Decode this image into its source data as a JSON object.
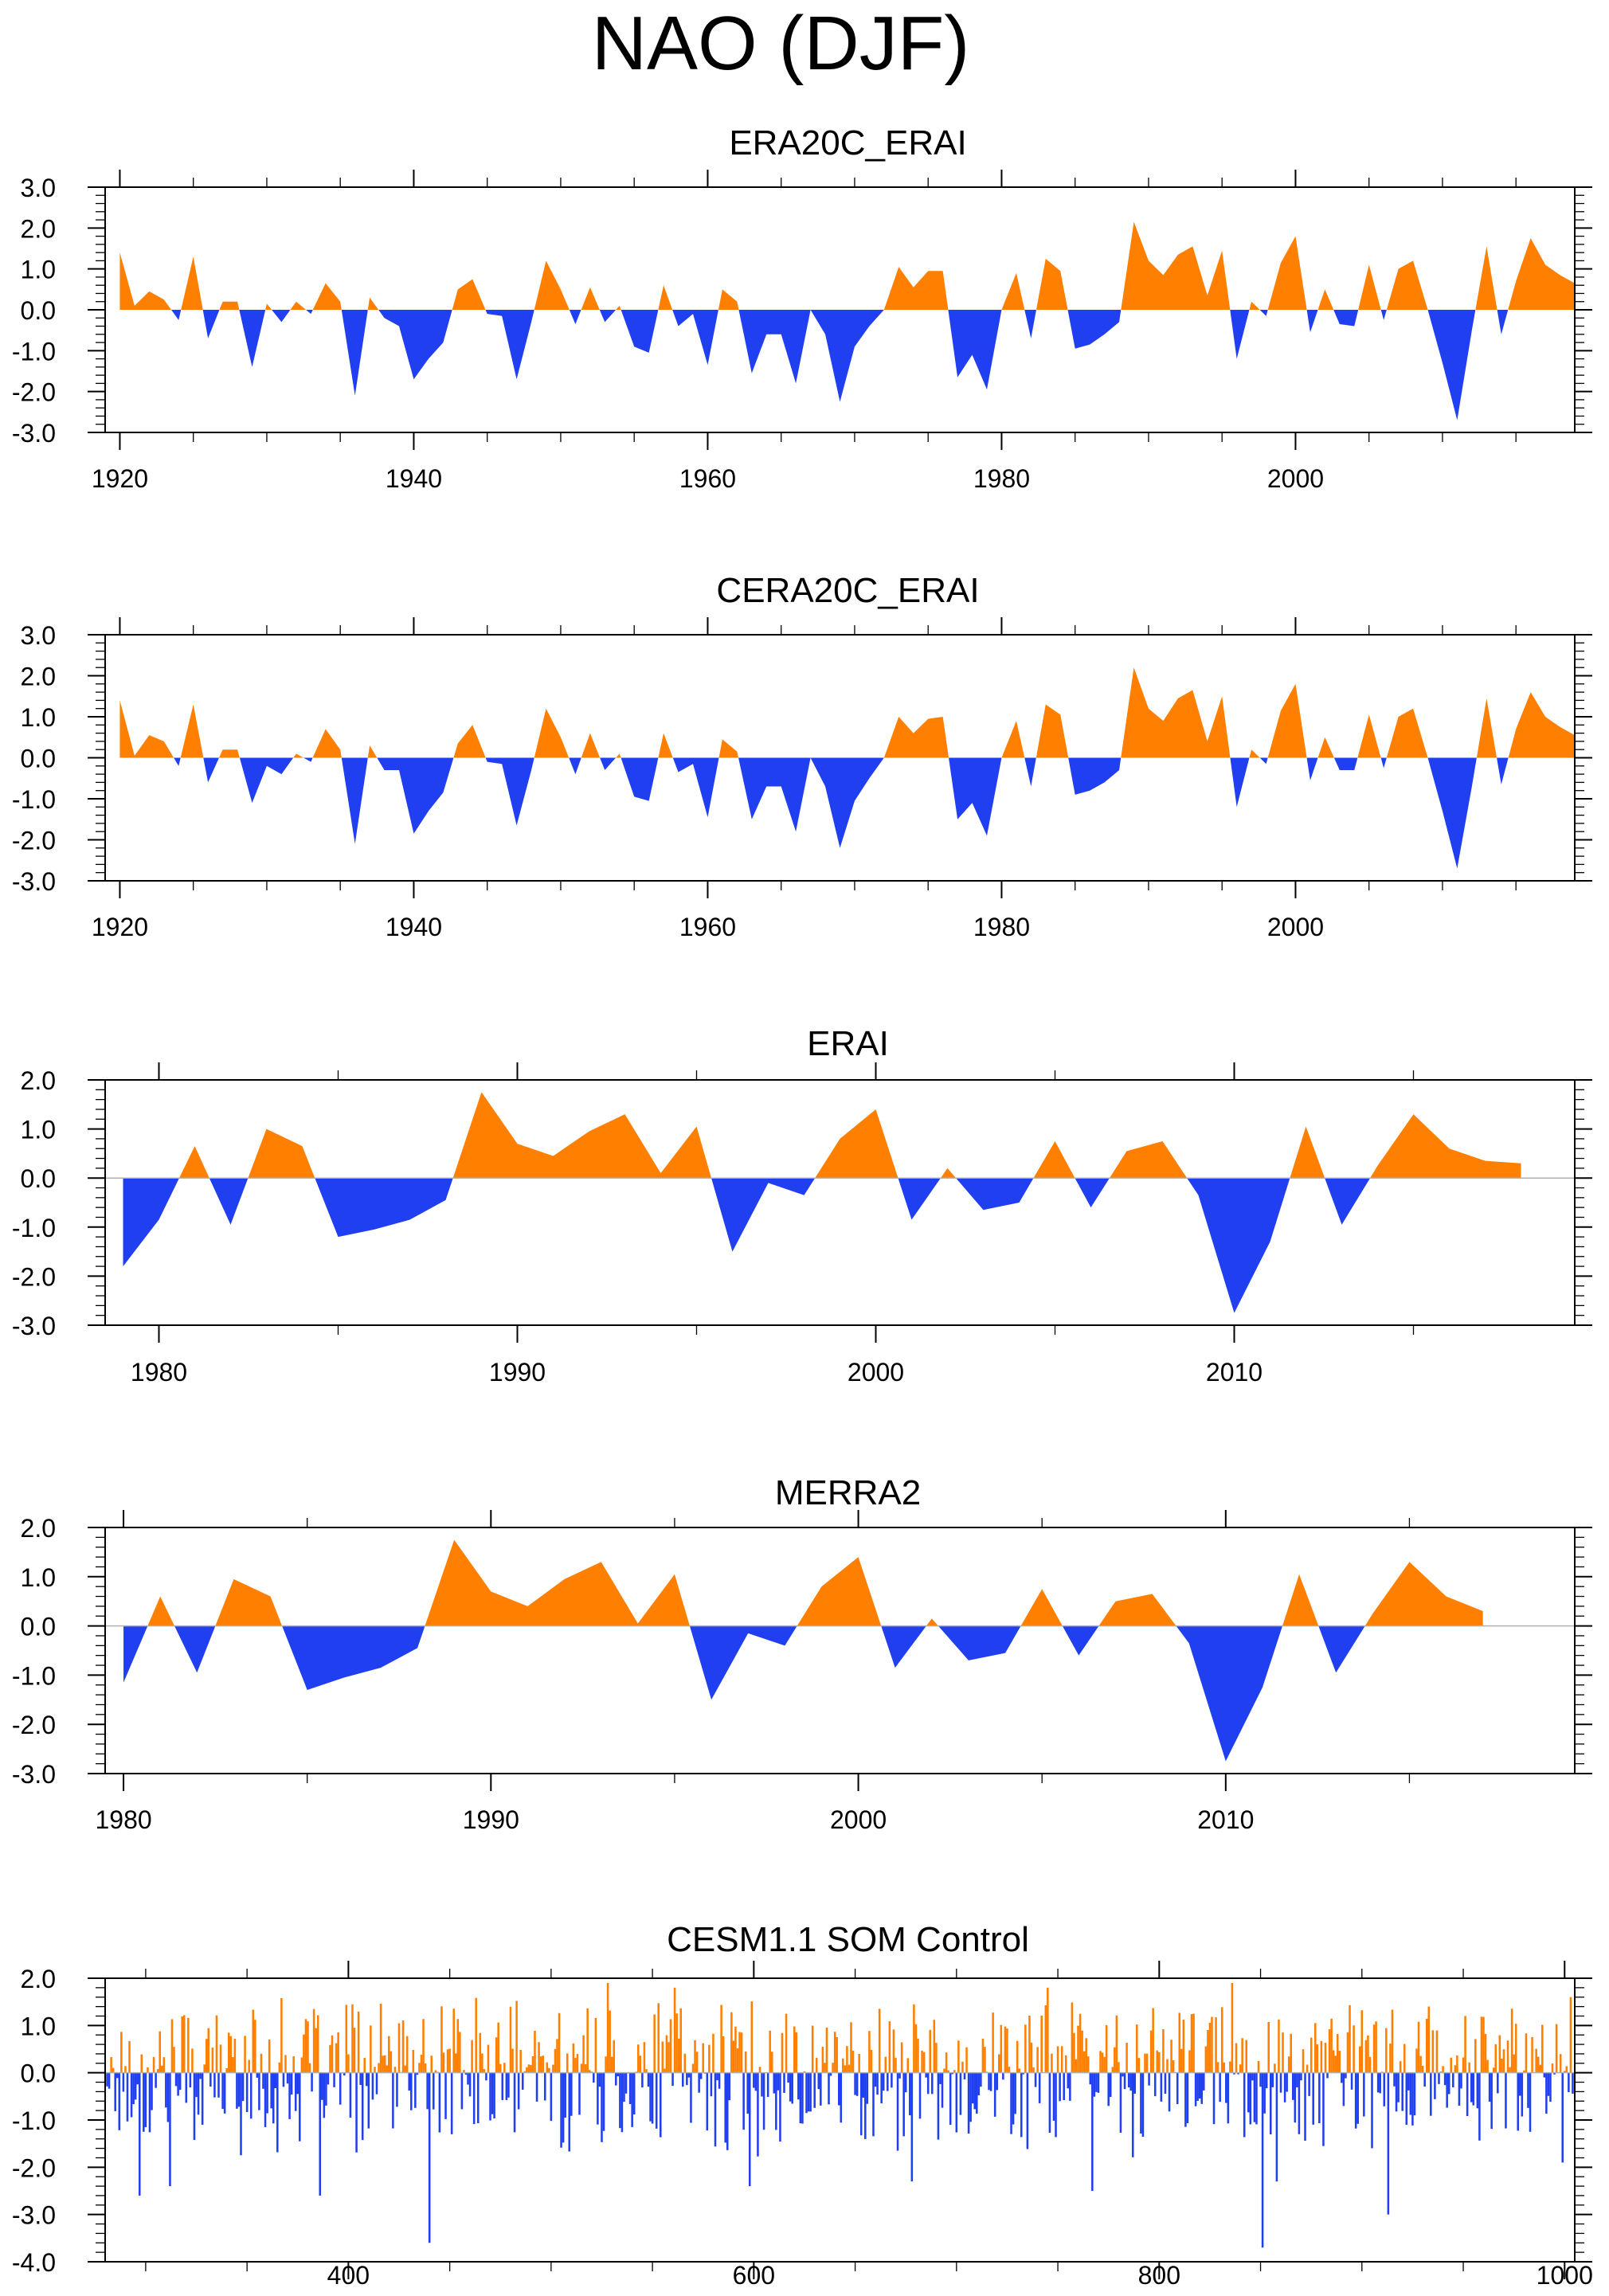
{
  "figure_title": "NAO (DJF)",
  "colors": {
    "positive": "#ff8000",
    "negative": "#1f3ff0",
    "axis": "#000000",
    "zero_line": "#b0b0b0"
  },
  "chart_data": [
    {
      "type": "area",
      "title": "ERA20C_ERAI",
      "xlim": [
        1919,
        2019
      ],
      "ylim": [
        -3.0,
        3.0
      ],
      "xticks": [
        1920,
        1940,
        1960,
        1980,
        2000
      ],
      "xtick_labels": [
        "1920",
        "1940",
        "1960",
        "1980",
        "2000"
      ],
      "yticks": [
        3.0,
        2.0,
        1.0,
        0.0,
        -1.0,
        -2.0,
        -3.0
      ],
      "ytick_labels": [
        "3.0",
        "2.0",
        "1.0",
        "0.0",
        "-1.0",
        "-2.0",
        "-3.0"
      ],
      "x_start": 1920,
      "values": [
        1.4,
        0.1,
        0.45,
        0.25,
        -0.25,
        1.3,
        -0.7,
        0.2,
        0.2,
        -1.4,
        0.15,
        -0.3,
        0.2,
        -0.1,
        0.65,
        0.2,
        -2.1,
        0.3,
        -0.2,
        -0.4,
        -1.7,
        -1.2,
        -0.8,
        0.5,
        0.75,
        -0.1,
        -0.15,
        -1.7,
        -0.3,
        1.2,
        0.5,
        -0.35,
        0.55,
        -0.3,
        0.1,
        -0.9,
        -1.05,
        0.6,
        -0.4,
        -0.1,
        -1.35,
        0.5,
        0.2,
        -1.55,
        -0.6,
        -0.6,
        -1.8,
        0.0,
        -0.6,
        -2.25,
        -0.9,
        -0.4,
        0.0,
        1.05,
        0.55,
        0.95,
        0.95,
        -1.65,
        -1.1,
        -1.95,
        0.0,
        0.9,
        -0.7,
        1.25,
        0.95,
        -0.95,
        -0.85,
        -0.6,
        -0.3,
        2.15,
        1.2,
        0.85,
        1.35,
        1.55,
        0.35,
        1.45,
        -1.2,
        0.2,
        -0.15,
        1.15,
        1.8,
        -0.55,
        0.5,
        -0.35,
        -0.4,
        1.1,
        -0.25,
        1.0,
        1.2,
        0.0,
        -1.3,
        -2.7,
        -0.5,
        1.55,
        -0.6,
        0.7,
        1.75,
        1.1,
        0.85,
        0.65
      ]
    },
    {
      "type": "area",
      "title": "CERA20C_ERAI",
      "xlim": [
        1919,
        2019
      ],
      "ylim": [
        -3.0,
        3.0
      ],
      "xticks": [
        1920,
        1940,
        1960,
        1980,
        2000
      ],
      "xtick_labels": [
        "1920",
        "1940",
        "1960",
        "1980",
        "2000"
      ],
      "yticks": [
        3.0,
        2.0,
        1.0,
        0.0,
        -1.0,
        -2.0,
        -3.0
      ],
      "ytick_labels": [
        "3.0",
        "2.0",
        "1.0",
        "0.0",
        "-1.0",
        "-2.0",
        "-3.0"
      ],
      "x_start": 1920,
      "values": [
        1.4,
        0.05,
        0.55,
        0.4,
        -0.2,
        1.3,
        -0.6,
        0.2,
        0.2,
        -1.1,
        -0.2,
        -0.4,
        0.1,
        -0.1,
        0.7,
        0.2,
        -2.1,
        0.3,
        -0.3,
        -0.3,
        -1.85,
        -1.3,
        -0.85,
        0.35,
        0.8,
        -0.1,
        -0.15,
        -1.65,
        -0.3,
        1.2,
        0.5,
        -0.4,
        0.6,
        -0.3,
        0.1,
        -0.95,
        -1.05,
        0.6,
        -0.35,
        -0.15,
        -1.45,
        0.45,
        0.15,
        -1.5,
        -0.7,
        -0.7,
        -1.8,
        0.0,
        -0.7,
        -2.2,
        -1.05,
        -0.5,
        0.0,
        1.0,
        0.6,
        0.95,
        1.0,
        -1.5,
        -1.1,
        -1.9,
        0.0,
        0.9,
        -0.7,
        1.3,
        1.05,
        -0.9,
        -0.8,
        -0.6,
        -0.3,
        2.2,
        1.2,
        0.9,
        1.45,
        1.65,
        0.4,
        1.5,
        -1.2,
        0.2,
        -0.15,
        1.15,
        1.8,
        -0.55,
        0.5,
        -0.3,
        -0.3,
        1.05,
        -0.25,
        1.0,
        1.2,
        0.0,
        -1.3,
        -2.7,
        -0.7,
        1.45,
        -0.65,
        0.7,
        1.6,
        1.0,
        0.75,
        0.55
      ]
    },
    {
      "type": "area",
      "title": "ERAI",
      "xlim": [
        1978.5,
        2019.5
      ],
      "ylim": [
        -3.0,
        2.0
      ],
      "xticks": [
        1980,
        1990,
        2000,
        2010
      ],
      "xtick_labels": [
        "1980",
        "1990",
        "2000",
        "2010"
      ],
      "yticks": [
        2.0,
        1.0,
        0.0,
        -1.0,
        -2.0,
        -3.0
      ],
      "ytick_labels": [
        "2.0",
        "1.0",
        "0.0",
        "-1.0",
        "-2.0",
        "-3.0"
      ],
      "x_start": 1979,
      "values": [
        -1.8,
        -0.85,
        0.65,
        -0.95,
        1.0,
        0.65,
        -1.2,
        -1.05,
        -0.85,
        -0.45,
        1.75,
        0.7,
        0.45,
        0.95,
        1.3,
        0.1,
        1.05,
        -1.5,
        -0.1,
        -0.35,
        0.8,
        1.4,
        -0.85,
        0.2,
        -0.65,
        -0.5,
        0.75,
        -0.6,
        0.55,
        0.75,
        -0.35,
        -2.75,
        -1.3,
        1.05,
        -0.95,
        0.25,
        1.3,
        0.6,
        0.35,
        0.3
      ]
    },
    {
      "type": "area",
      "title": "MERRA2",
      "xlim": [
        1979.5,
        2019.5
      ],
      "ylim": [
        -3.0,
        2.0
      ],
      "xticks": [
        1980,
        1990,
        2000,
        2010
      ],
      "xtick_labels": [
        "1980",
        "1990",
        "2000",
        "2010"
      ],
      "yticks": [
        2.0,
        1.0,
        0.0,
        -1.0,
        -2.0,
        -3.0
      ],
      "ytick_labels": [
        "2.0",
        "1.0",
        "0.0",
        "-1.0",
        "-2.0",
        "-3.0"
      ],
      "x_start": 1980,
      "values": [
        -1.15,
        0.6,
        -0.95,
        0.95,
        0.6,
        -1.3,
        -1.05,
        -0.85,
        -0.45,
        1.75,
        0.7,
        0.4,
        0.95,
        1.3,
        0.05,
        1.05,
        -1.5,
        -0.15,
        -0.4,
        0.8,
        1.4,
        -0.85,
        0.15,
        -0.7,
        -0.55,
        0.75,
        -0.6,
        0.5,
        0.65,
        -0.35,
        -2.75,
        -1.25,
        1.05,
        -0.95,
        0.25,
        1.3,
        0.6,
        0.3
      ]
    },
    {
      "type": "area",
      "title": "CESM1.1 SOM Control",
      "xlim": [
        280,
        1005
      ],
      "ylim": [
        -4.0,
        2.0
      ],
      "xticks": [
        400,
        600,
        800,
        1000
      ],
      "xtick_labels": [
        "400",
        "600",
        "800",
        "1000"
      ],
      "yticks": [
        2.0,
        1.0,
        0.0,
        -1.0,
        -2.0,
        -3.0,
        -4.0
      ],
      "ytick_labels": [
        "2.0",
        "1.0",
        "0.0",
        "-1.0",
        "-2.0",
        "-3.0",
        "-4.0"
      ],
      "x_start": 281,
      "x_end": 1004,
      "generator": {
        "seed": 17,
        "pos_scale": 0.75,
        "neg_scale": 0.8,
        "spikes": [
          [
            297,
            -2.6
          ],
          [
            312,
            -2.4
          ],
          [
            386,
            -2.6
          ],
          [
            440,
            -3.6
          ],
          [
            528,
            1.9
          ],
          [
            561,
            1.8
          ],
          [
            598,
            -2.4
          ],
          [
            678,
            -2.3
          ],
          [
            745,
            1.8
          ],
          [
            767,
            -2.5
          ],
          [
            836,
            1.9
          ],
          [
            851,
            -3.7
          ],
          [
            858,
            -2.3
          ],
          [
            913,
            -3.0
          ],
          [
            999,
            -1.9
          ],
          [
            1003,
            1.6
          ]
        ]
      }
    }
  ]
}
